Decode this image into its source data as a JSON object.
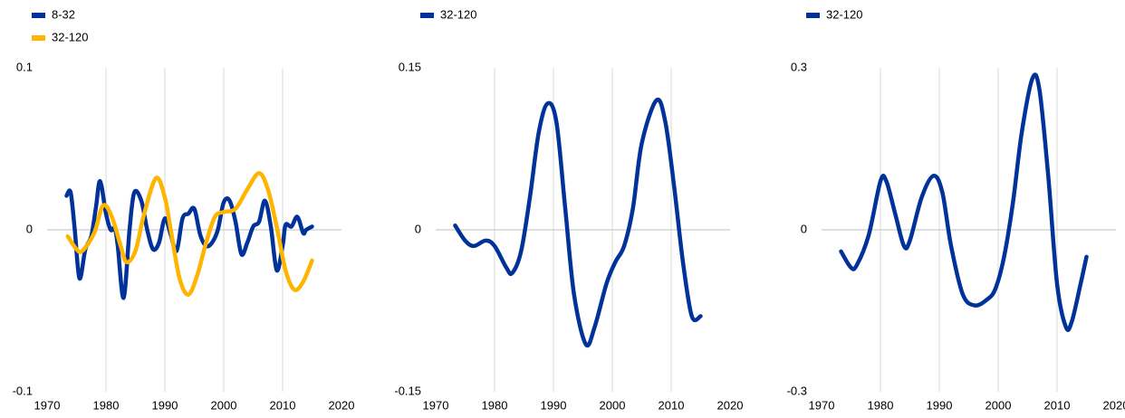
{
  "chart_data": [
    {
      "type": "line",
      "xlim": [
        1970,
        2020
      ],
      "xticks": [
        1970,
        1980,
        1990,
        2000,
        2010,
        2020
      ],
      "ylim": [
        -0.1,
        0.1
      ],
      "yticks": [
        -0.1,
        0,
        0.1
      ],
      "grid": "x",
      "legend": "top-left",
      "series": [
        {
          "name": "8-32",
          "color": "#003299",
          "x": [
            1973.3,
            1974,
            1974.7,
            1975.5,
            1976.5,
            1977.5,
            1978.3,
            1979,
            1980,
            1980.8,
            1981.5,
            1982,
            1983,
            1984,
            1984.8,
            1986,
            1987,
            1988,
            1989,
            1990,
            1991,
            1992,
            1993,
            1994,
            1995,
            1996,
            1997,
            1998,
            1999,
            2000,
            2001,
            2002,
            2003,
            2004,
            2005,
            2006,
            2007,
            2008,
            2009,
            2010,
            2010.5,
            2011.5,
            2012.5,
            2013.5,
            2014,
            2015
          ],
          "values": [
            0.021,
            0.023,
            0.0,
            -0.03,
            -0.012,
            -0.004,
            0.014,
            0.03,
            0.01,
            0.0,
            0.001,
            -0.01,
            -0.042,
            0.0,
            0.023,
            0.018,
            0.0,
            -0.012,
            -0.008,
            0.007,
            -0.003,
            -0.013,
            0.007,
            0.01,
            0.013,
            -0.003,
            -0.01,
            -0.008,
            0.0,
            0.017,
            0.018,
            0.005,
            -0.015,
            -0.008,
            0.002,
            0.005,
            0.018,
            0.002,
            -0.025,
            -0.01,
            0.003,
            0.002,
            0.008,
            -0.002,
            0.0,
            0.002
          ]
        },
        {
          "name": "32-120",
          "color": "#ffb400",
          "x": [
            1973.5,
            1975,
            1976,
            1978,
            1979.5,
            1981,
            1982.5,
            1983.5,
            1985,
            1986.5,
            1988.5,
            1990,
            1991,
            1992.5,
            1994,
            1995.5,
            1997,
            1998.5,
            2000,
            2002,
            2004,
            2006,
            2007.5,
            2009,
            2010.5,
            2012,
            2013.5,
            2015
          ],
          "values": [
            -0.004,
            -0.012,
            -0.013,
            -0.002,
            0.015,
            0.008,
            -0.01,
            -0.02,
            -0.013,
            0.01,
            0.032,
            0.02,
            0.0,
            -0.03,
            -0.04,
            -0.028,
            -0.008,
            0.008,
            0.011,
            0.013,
            0.025,
            0.035,
            0.025,
            0.002,
            -0.025,
            -0.037,
            -0.032,
            -0.019
          ]
        }
      ]
    },
    {
      "type": "line",
      "xlim": [
        1970,
        2020
      ],
      "xticks": [
        1970,
        1980,
        1990,
        2000,
        2010,
        2020
      ],
      "ylim": [
        -0.15,
        0.15
      ],
      "yticks": [
        -0.15,
        0,
        0.15
      ],
      "grid": "x",
      "legend": "top-left",
      "series": [
        {
          "name": "32-120",
          "color": "#003299",
          "x": [
            1973.3,
            1975,
            1976.5,
            1978.5,
            1980,
            1982,
            1983,
            1984.5,
            1986,
            1987.5,
            1989,
            1990.5,
            1992,
            1993.5,
            1995.5,
            1997,
            1999,
            2000.5,
            2002,
            2003.5,
            2005,
            2007.5,
            2009,
            2010.5,
            2012,
            2013.5,
            2015
          ],
          "values": [
            0.004,
            -0.01,
            -0.015,
            -0.01,
            -0.015,
            -0.035,
            -0.04,
            -0.02,
            0.03,
            0.09,
            0.117,
            0.1,
            0.02,
            -0.06,
            -0.106,
            -0.09,
            -0.05,
            -0.03,
            -0.015,
            0.02,
            0.08,
            0.12,
            0.1,
            0.04,
            -0.03,
            -0.08,
            -0.08
          ]
        }
      ]
    },
    {
      "type": "line",
      "xlim": [
        1970,
        2020
      ],
      "xticks": [
        1970,
        1980,
        1990,
        2000,
        2010,
        2020
      ],
      "ylim": [
        -0.3,
        0.3
      ],
      "yticks": [
        -0.3,
        0,
        0.3
      ],
      "grid": "x",
      "legend": "top-left",
      "series": [
        {
          "name": "32-120",
          "color": "#003299",
          "x": [
            1973.3,
            1975,
            1976,
            1978,
            1980,
            1981,
            1982.5,
            1984,
            1985,
            1987,
            1989,
            1990.5,
            1992,
            1994,
            1996,
            1998,
            1999.5,
            2001,
            2002.5,
            2004,
            2005.8,
            2007,
            2008.5,
            2010,
            2011.5,
            2012.5,
            2014,
            2015
          ],
          "values": [
            -0.04,
            -0.07,
            -0.065,
            -0.01,
            0.09,
            0.09,
            0.03,
            -0.03,
            -0.02,
            0.06,
            0.1,
            0.07,
            -0.03,
            -0.12,
            -0.14,
            -0.13,
            -0.11,
            -0.05,
            0.05,
            0.18,
            0.28,
            0.26,
            0.1,
            -0.1,
            -0.18,
            -0.17,
            -0.1,
            -0.05
          ]
        }
      ]
    }
  ]
}
